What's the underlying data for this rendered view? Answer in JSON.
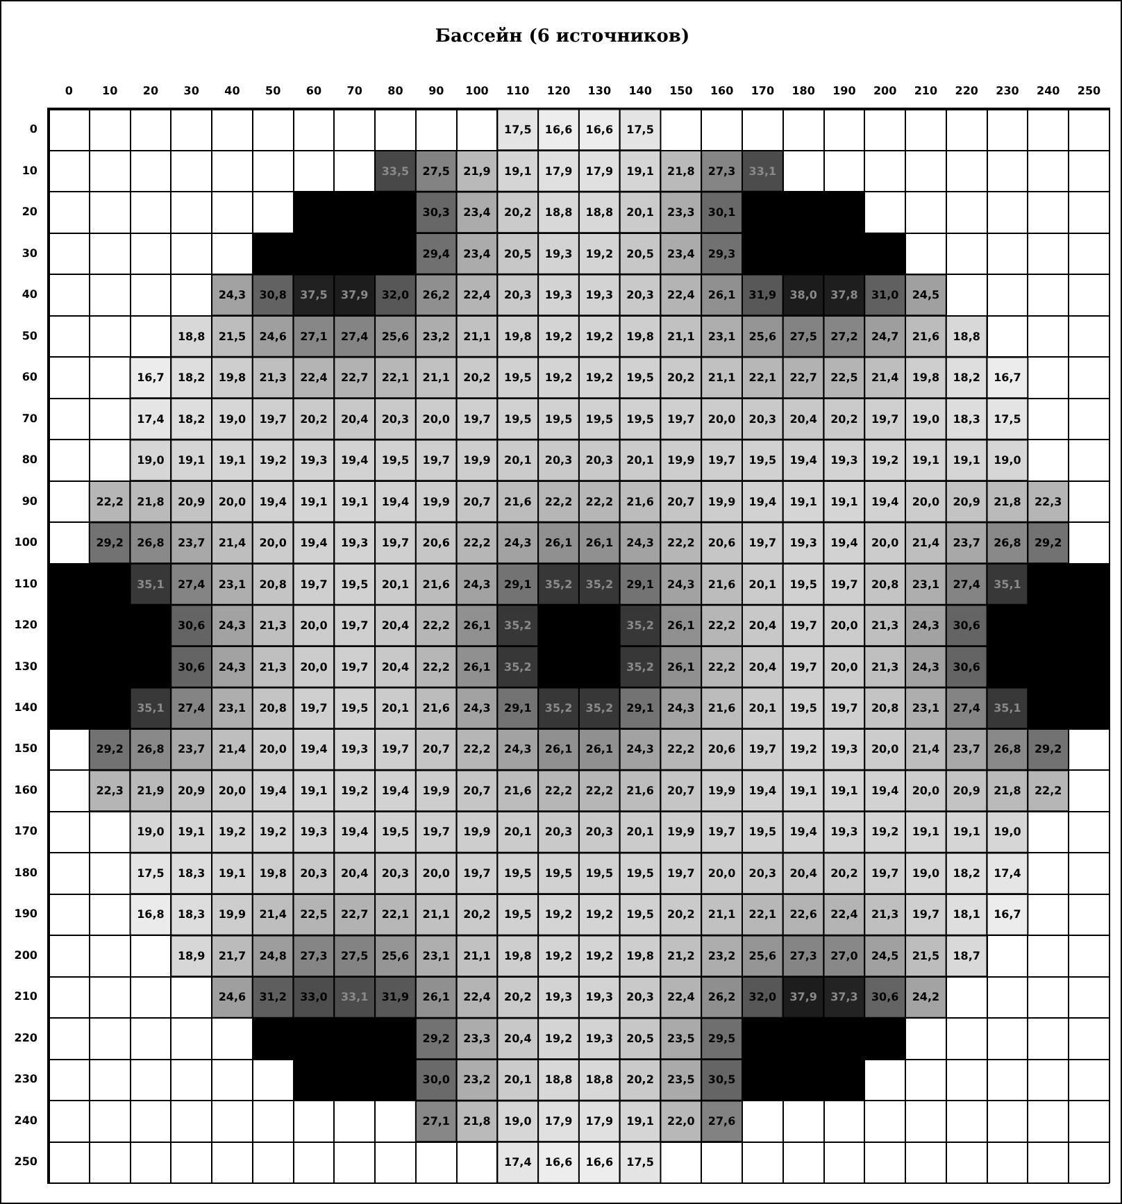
{
  "chart_data": {
    "type": "heatmap",
    "title": "Бассейн (6 источников)",
    "grid": true,
    "categories": [
      "0",
      "10",
      "20",
      "30",
      "40",
      "50",
      "60",
      "70",
      "80",
      "90",
      "100",
      "110",
      "120",
      "130",
      "140",
      "150",
      "160",
      "170",
      "180",
      "190",
      "200",
      "210",
      "220",
      "230",
      "240",
      "250"
    ],
    "y_categories": [
      "0",
      "10",
      "20",
      "30",
      "40",
      "50",
      "60",
      "70",
      "80",
      "90",
      "100",
      "110",
      "120",
      "130",
      "140",
      "150",
      "160",
      "170",
      "180",
      "190",
      "200",
      "210",
      "220",
      "230",
      "240",
      "250"
    ],
    "cells": [
      [
        null,
        null,
        null,
        null,
        null,
        null,
        null,
        null,
        null,
        null,
        null,
        17.5,
        16.6,
        16.6,
        17.5,
        null,
        null,
        null,
        null,
        null,
        null,
        null,
        null,
        null,
        null,
        null
      ],
      [
        null,
        null,
        null,
        null,
        null,
        null,
        null,
        null,
        33.5,
        27.5,
        21.9,
        19.1,
        17.9,
        17.9,
        19.1,
        21.8,
        27.3,
        33.1,
        null,
        null,
        null,
        null,
        null,
        null,
        null,
        null
      ],
      [
        null,
        null,
        null,
        null,
        null,
        null,
        null,
        null,
        null,
        30.3,
        23.4,
        20.2,
        18.8,
        18.8,
        20.1,
        23.3,
        30.1,
        null,
        null,
        null,
        null,
        null,
        null,
        null,
        null,
        null
      ],
      [
        null,
        null,
        null,
        null,
        null,
        null,
        null,
        null,
        null,
        29.4,
        23.4,
        20.5,
        19.3,
        19.2,
        20.5,
        23.4,
        29.3,
        null,
        null,
        null,
        null,
        null,
        null,
        null,
        null,
        null
      ],
      [
        null,
        null,
        null,
        null,
        24.3,
        30.8,
        37.5,
        37.9,
        32.0,
        26.2,
        22.4,
        20.3,
        19.3,
        19.3,
        20.3,
        22.4,
        26.1,
        31.9,
        38.0,
        37.8,
        31.0,
        24.5,
        null,
        null,
        null,
        null
      ],
      [
        null,
        null,
        null,
        18.8,
        21.5,
        24.6,
        27.1,
        27.4,
        25.6,
        23.2,
        21.1,
        19.8,
        19.2,
        19.2,
        19.8,
        21.1,
        23.1,
        25.6,
        27.5,
        27.2,
        24.7,
        21.6,
        18.8,
        null,
        null,
        null
      ],
      [
        null,
        null,
        16.7,
        18.2,
        19.8,
        21.3,
        22.4,
        22.7,
        22.1,
        21.1,
        20.2,
        19.5,
        19.2,
        19.2,
        19.5,
        20.2,
        21.1,
        22.1,
        22.7,
        22.5,
        21.4,
        19.8,
        18.2,
        16.7,
        null,
        null
      ],
      [
        null,
        null,
        17.4,
        18.2,
        19.0,
        19.7,
        20.2,
        20.4,
        20.3,
        20.0,
        19.7,
        19.5,
        19.5,
        19.5,
        19.5,
        19.7,
        20.0,
        20.3,
        20.4,
        20.2,
        19.7,
        19.0,
        18.3,
        17.5,
        null,
        null
      ],
      [
        null,
        null,
        19.0,
        19.1,
        19.1,
        19.2,
        19.3,
        19.4,
        19.5,
        19.7,
        19.9,
        20.1,
        20.3,
        20.3,
        20.1,
        19.9,
        19.7,
        19.5,
        19.4,
        19.3,
        19.2,
        19.1,
        19.1,
        19.0,
        null,
        null
      ],
      [
        null,
        22.2,
        21.8,
        20.9,
        20.0,
        19.4,
        19.1,
        19.1,
        19.4,
        19.9,
        20.7,
        21.6,
        22.2,
        22.2,
        21.6,
        20.7,
        19.9,
        19.4,
        19.1,
        19.1,
        19.4,
        20.0,
        20.9,
        21.8,
        22.3,
        null
      ],
      [
        null,
        29.2,
        26.8,
        23.7,
        21.4,
        20.0,
        19.4,
        19.3,
        19.7,
        20.6,
        22.2,
        24.3,
        26.1,
        26.1,
        24.3,
        22.2,
        20.6,
        19.7,
        19.3,
        19.4,
        20.0,
        21.4,
        23.7,
        26.8,
        29.2,
        null
      ],
      [
        null,
        null,
        35.1,
        27.4,
        23.1,
        20.8,
        19.7,
        19.5,
        20.1,
        21.6,
        24.3,
        29.1,
        35.2,
        35.2,
        29.1,
        24.3,
        21.6,
        20.1,
        19.5,
        19.7,
        20.8,
        23.1,
        27.4,
        35.1,
        null,
        null
      ],
      [
        null,
        null,
        null,
        30.6,
        24.3,
        21.3,
        20.0,
        19.7,
        20.4,
        22.2,
        26.1,
        35.2,
        null,
        null,
        35.2,
        26.1,
        22.2,
        20.4,
        19.7,
        20.0,
        21.3,
        24.3,
        30.6,
        null,
        null,
        null
      ],
      [
        null,
        null,
        null,
        30.6,
        24.3,
        21.3,
        20.0,
        19.7,
        20.4,
        22.2,
        26.1,
        35.2,
        null,
        null,
        35.2,
        26.1,
        22.2,
        20.4,
        19.7,
        20.0,
        21.3,
        24.3,
        30.6,
        null,
        null,
        null
      ],
      [
        null,
        null,
        35.1,
        27.4,
        23.1,
        20.8,
        19.7,
        19.5,
        20.1,
        21.6,
        24.3,
        29.1,
        35.2,
        35.2,
        29.1,
        24.3,
        21.6,
        20.1,
        19.5,
        19.7,
        20.8,
        23.1,
        27.4,
        35.1,
        null,
        null
      ],
      [
        null,
        29.2,
        26.8,
        23.7,
        21.4,
        20.0,
        19.4,
        19.3,
        19.7,
        20.7,
        22.2,
        24.3,
        26.1,
        26.1,
        24.3,
        22.2,
        20.6,
        19.7,
        19.2,
        19.3,
        20.0,
        21.4,
        23.7,
        26.8,
        29.2,
        null
      ],
      [
        null,
        22.3,
        21.9,
        20.9,
        20.0,
        19.4,
        19.1,
        19.2,
        19.4,
        19.9,
        20.7,
        21.6,
        22.2,
        22.2,
        21.6,
        20.7,
        19.9,
        19.4,
        19.1,
        19.1,
        19.4,
        20.0,
        20.9,
        21.8,
        22.2,
        null
      ],
      [
        null,
        null,
        19.0,
        19.1,
        19.2,
        19.2,
        19.3,
        19.4,
        19.5,
        19.7,
        19.9,
        20.1,
        20.3,
        20.3,
        20.1,
        19.9,
        19.7,
        19.5,
        19.4,
        19.3,
        19.2,
        19.1,
        19.1,
        19.0,
        null,
        null
      ],
      [
        null,
        null,
        17.5,
        18.3,
        19.1,
        19.8,
        20.3,
        20.4,
        20.3,
        20.0,
        19.7,
        19.5,
        19.5,
        19.5,
        19.5,
        19.7,
        20.0,
        20.3,
        20.4,
        20.2,
        19.7,
        19.0,
        18.2,
        17.4,
        null,
        null
      ],
      [
        null,
        null,
        16.8,
        18.3,
        19.9,
        21.4,
        22.5,
        22.7,
        22.1,
        21.1,
        20.2,
        19.5,
        19.2,
        19.2,
        19.5,
        20.2,
        21.1,
        22.1,
        22.6,
        22.4,
        21.3,
        19.7,
        18.1,
        16.7,
        null,
        null
      ],
      [
        null,
        null,
        null,
        18.9,
        21.7,
        24.8,
        27.3,
        27.5,
        25.6,
        23.1,
        21.1,
        19.8,
        19.2,
        19.2,
        19.8,
        21.2,
        23.2,
        25.6,
        27.3,
        27.0,
        24.5,
        21.5,
        18.7,
        null,
        null,
        null
      ],
      [
        null,
        null,
        null,
        null,
        24.6,
        31.2,
        33.0,
        33.1,
        31.9,
        26.1,
        22.4,
        20.2,
        19.3,
        19.3,
        20.3,
        22.4,
        26.2,
        32.0,
        37.9,
        37.3,
        30.6,
        24.2,
        null,
        null,
        null,
        null
      ],
      [
        null,
        null,
        null,
        null,
        null,
        null,
        null,
        null,
        null,
        29.2,
        23.3,
        20.4,
        19.2,
        19.3,
        20.5,
        23.5,
        29.5,
        null,
        null,
        null,
        null,
        null,
        null,
        null,
        null,
        null
      ],
      [
        null,
        null,
        null,
        null,
        null,
        null,
        null,
        null,
        null,
        30.0,
        23.2,
        20.1,
        18.8,
        18.8,
        20.2,
        23.5,
        30.5,
        null,
        null,
        null,
        null,
        null,
        null,
        null,
        null,
        null
      ],
      [
        null,
        null,
        null,
        null,
        null,
        null,
        null,
        null,
        null,
        27.1,
        21.8,
        19.0,
        17.9,
        17.9,
        19.1,
        22.0,
        27.6,
        null,
        null,
        null,
        null,
        null,
        null,
        null,
        null,
        null
      ],
      [
        null,
        null,
        null,
        null,
        null,
        null,
        null,
        null,
        null,
        null,
        null,
        17.4,
        16.6,
        16.6,
        17.5,
        null,
        null,
        null,
        null,
        null,
        null,
        null,
        null,
        null,
        null,
        null
      ]
    ],
    "cell_labels": [
      [
        null,
        null,
        null,
        null,
        null,
        null,
        null,
        null,
        null,
        null,
        null,
        "17,5",
        "16,6",
        "16,6",
        "17,5",
        null,
        null,
        null,
        null,
        null,
        null,
        null,
        null,
        null,
        null,
        null
      ],
      [
        null,
        null,
        null,
        null,
        null,
        null,
        null,
        null,
        "33,5",
        "27,5",
        "21,9",
        "19,1",
        "17,9",
        "17,9",
        "19,1",
        "21,8",
        "27,3",
        "33,1",
        null,
        null,
        null,
        null,
        null,
        null,
        null,
        null
      ],
      [
        null,
        null,
        null,
        null,
        null,
        null,
        null,
        null,
        null,
        "30,3",
        "23,4",
        "20,2",
        "18,8",
        "18,8",
        "20,1",
        "23,3",
        "30,1",
        null,
        null,
        null,
        null,
        null,
        null,
        null,
        null,
        null
      ],
      [
        null,
        null,
        null,
        null,
        null,
        null,
        null,
        null,
        null,
        "29,4",
        "23,4",
        "20,5",
        "19,3",
        "19,2",
        "20,5",
        "23,4",
        "29,3",
        null,
        null,
        null,
        null,
        null,
        null,
        null,
        null,
        null
      ],
      [
        null,
        null,
        null,
        null,
        "24,3",
        "30,8",
        "37,5",
        "37,9",
        "32,0",
        "26,2",
        "22,4",
        "20,3",
        "19,3",
        "19,3",
        "20,3",
        "22,4",
        "26,1",
        "31,9",
        "38,0",
        "37,8",
        "31,0",
        "24,5",
        null,
        null,
        null,
        null
      ],
      [
        null,
        null,
        null,
        "18,8",
        "21,5",
        "24,6",
        "27,1",
        "27,4",
        "25,6",
        "23,2",
        "21,1",
        "19,8",
        "19,2",
        "19,2",
        "19,8",
        "21,1",
        "23,1",
        "25,6",
        "27,5",
        "27,2",
        "24,7",
        "21,6",
        "18,8",
        null,
        null,
        null
      ],
      [
        null,
        null,
        "16,7",
        "18,2",
        "19,8",
        "21,3",
        "22,4",
        "22,7",
        "22,1",
        "21,1",
        "20,2",
        "19,5",
        "19,2",
        "19,2",
        "19,5",
        "20,2",
        "21,1",
        "22,1",
        "22,7",
        "22,5",
        "21,4",
        "19,8",
        "18,2",
        "16,7",
        null,
        null
      ],
      [
        null,
        null,
        "17,4",
        "18,2",
        "19,0",
        "19,7",
        "20,2",
        "20,4",
        "20,3",
        "20,0",
        "19,7",
        "19,5",
        "19,5",
        "19,5",
        "19,5",
        "19,7",
        "20,0",
        "20,3",
        "20,4",
        "20,2",
        "19,7",
        "19,0",
        "18,3",
        "17,5",
        null,
        null
      ],
      [
        null,
        null,
        "19,0",
        "19,1",
        "19,1",
        "19,2",
        "19,3",
        "19,4",
        "19,5",
        "19,7",
        "19,9",
        "20,1",
        "20,3",
        "20,3",
        "20,1",
        "19,9",
        "19,7",
        "19,5",
        "19,4",
        "19,3",
        "19,2",
        "19,1",
        "19,1",
        "19,0",
        null,
        null
      ],
      [
        null,
        "22,2",
        "21,8",
        "20,9",
        "20,0",
        "19,4",
        "19,1",
        "19,1",
        "19,4",
        "19,9",
        "20,7",
        "21,6",
        "22,2",
        "22,2",
        "21,6",
        "20,7",
        "19,9",
        "19,4",
        "19,1",
        "19,1",
        "19,4",
        "20,0",
        "20,9",
        "21,8",
        "22,3",
        null
      ],
      [
        null,
        "29,2",
        "26,8",
        "23,7",
        "21,4",
        "20,0",
        "19,4",
        "19,3",
        "19,7",
        "20,6",
        "22,2",
        "24,3",
        "26,1",
        "26,1",
        "24,3",
        "22,2",
        "20,6",
        "19,7",
        "19,3",
        "19,4",
        "20,0",
        "21,4",
        "23,7",
        "26,8",
        "29,2",
        null
      ],
      [
        null,
        null,
        "35,1",
        "27,4",
        "23,1",
        "20,8",
        "19,7",
        "19,5",
        "20,1",
        "21,6",
        "24,3",
        "29,1",
        "35,2",
        "35,2",
        "29,1",
        "24,3",
        "21,6",
        "20,1",
        "19,5",
        "19,7",
        "20,8",
        "23,1",
        "27,4",
        "35,1",
        null,
        null
      ],
      [
        null,
        null,
        null,
        "30,6",
        "24,3",
        "21,3",
        "20,0",
        "19,7",
        "20,4",
        "22,2",
        "26,1",
        "35,2",
        null,
        null,
        "35,2",
        "26,1",
        "22,2",
        "20,4",
        "19,7",
        "20,0",
        "21,3",
        "24,3",
        "30,6",
        null,
        null,
        null
      ],
      [
        null,
        null,
        null,
        "30,6",
        "24,3",
        "21,3",
        "20,0",
        "19,7",
        "20,4",
        "22,2",
        "26,1",
        "35,2",
        null,
        null,
        "35,2",
        "26,1",
        "22,2",
        "20,4",
        "19,7",
        "20,0",
        "21,3",
        "24,3",
        "30,6",
        null,
        null,
        null
      ],
      [
        null,
        null,
        "35,1",
        "27,4",
        "23,1",
        "20,8",
        "19,7",
        "19,5",
        "20,1",
        "21,6",
        "24,3",
        "29,1",
        "35,2",
        "35,2",
        "29,1",
        "24,3",
        "21,6",
        "20,1",
        "19,5",
        "19,7",
        "20,8",
        "23,1",
        "27,4",
        "35,1",
        null,
        null
      ],
      [
        null,
        "29,2",
        "26,8",
        "23,7",
        "21,4",
        "20,0",
        "19,4",
        "19,3",
        "19,7",
        "20,7",
        "22,2",
        "24,3",
        "26,1",
        "26,1",
        "24,3",
        "22,2",
        "20,6",
        "19,7",
        "19,2",
        "19,3",
        "20,0",
        "21,4",
        "23,7",
        "26,8",
        "29,2",
        null
      ],
      [
        null,
        "22,3",
        "21,9",
        "20,9",
        "20,0",
        "19,4",
        "19,1",
        "19,2",
        "19,4",
        "19,9",
        "20,7",
        "21,6",
        "22,2",
        "22,2",
        "21,6",
        "20,7",
        "19,9",
        "19,4",
        "19,1",
        "19,1",
        "19,4",
        "20,0",
        "20,9",
        "21,8",
        "22,2",
        null
      ],
      [
        null,
        null,
        "19,0",
        "19,1",
        "19,2",
        "19,2",
        "19,3",
        "19,4",
        "19,5",
        "19,7",
        "19,9",
        "20,1",
        "20,3",
        "20,3",
        "20,1",
        "19,9",
        "19,7",
        "19,5",
        "19,4",
        "19,3",
        "19,2",
        "19,1",
        "19,1",
        "19,0",
        null,
        null
      ],
      [
        null,
        null,
        "17,5",
        "18,3",
        "19,1",
        "19,8",
        "20,3",
        "20,4",
        "20,3",
        "20,0",
        "19,7",
        "19,5",
        "19,5",
        "19,5",
        "19,5",
        "19,7",
        "20,0",
        "20,3",
        "20,4",
        "20,2",
        "19,7",
        "19,0",
        "18,2",
        "17,4",
        null,
        null
      ],
      [
        null,
        null,
        "16,8",
        "18,3",
        "19,9",
        "21,4",
        "22,5",
        "22,7",
        "22,1",
        "21,1",
        "20,2",
        "19,5",
        "19,2",
        "19,2",
        "19,5",
        "20,2",
        "21,1",
        "22,1",
        "22,6",
        "22,4",
        "21,3",
        "19,7",
        "18,1",
        "16,7",
        null,
        null
      ],
      [
        null,
        null,
        null,
        "18,9",
        "21,7",
        "24,8",
        "27,3",
        "27,5",
        "25,6",
        "23,1",
        "21,1",
        "19,8",
        "19,2",
        "19,2",
        "19,8",
        "21,2",
        "23,2",
        "25,6",
        "27,3",
        "27,0",
        "24,5",
        "21,5",
        "18,7",
        null,
        null,
        null
      ],
      [
        null,
        null,
        null,
        null,
        "24,6",
        "31,2",
        "33,0",
        "33,1",
        "31,9",
        "26,1",
        "22,4",
        "20,2",
        "19,3",
        "19,3",
        "20,3",
        "22,4",
        "26,2",
        "32,0",
        "37,9",
        "37,3",
        "30,6",
        "24,2",
        null,
        null,
        null,
        null
      ],
      [
        null,
        null,
        null,
        null,
        null,
        null,
        null,
        null,
        null,
        "29,2",
        "23,3",
        "20,4",
        "19,2",
        "19,3",
        "20,5",
        "23,5",
        "29,5",
        null,
        null,
        null,
        null,
        null,
        null,
        null,
        null,
        null
      ],
      [
        null,
        null,
        null,
        null,
        null,
        null,
        null,
        null,
        null,
        "30,0",
        "23,2",
        "20,1",
        "18,8",
        "18,8",
        "20,2",
        "23,5",
        "30,5",
        null,
        null,
        null,
        null,
        null,
        null,
        null,
        null,
        null
      ],
      [
        null,
        null,
        null,
        null,
        null,
        null,
        null,
        null,
        null,
        "27,1",
        "21,8",
        "19,0",
        "17,9",
        "17,9",
        "19,1",
        "22,0",
        "27,6",
        null,
        null,
        null,
        null,
        null,
        null,
        null,
        null,
        null
      ],
      [
        null,
        null,
        null,
        null,
        null,
        null,
        null,
        null,
        null,
        null,
        null,
        "17,4",
        "16,6",
        "16,6",
        "17,5",
        null,
        null,
        null,
        null,
        null,
        null,
        null,
        null,
        null,
        null,
        null
      ]
    ]
  }
}
